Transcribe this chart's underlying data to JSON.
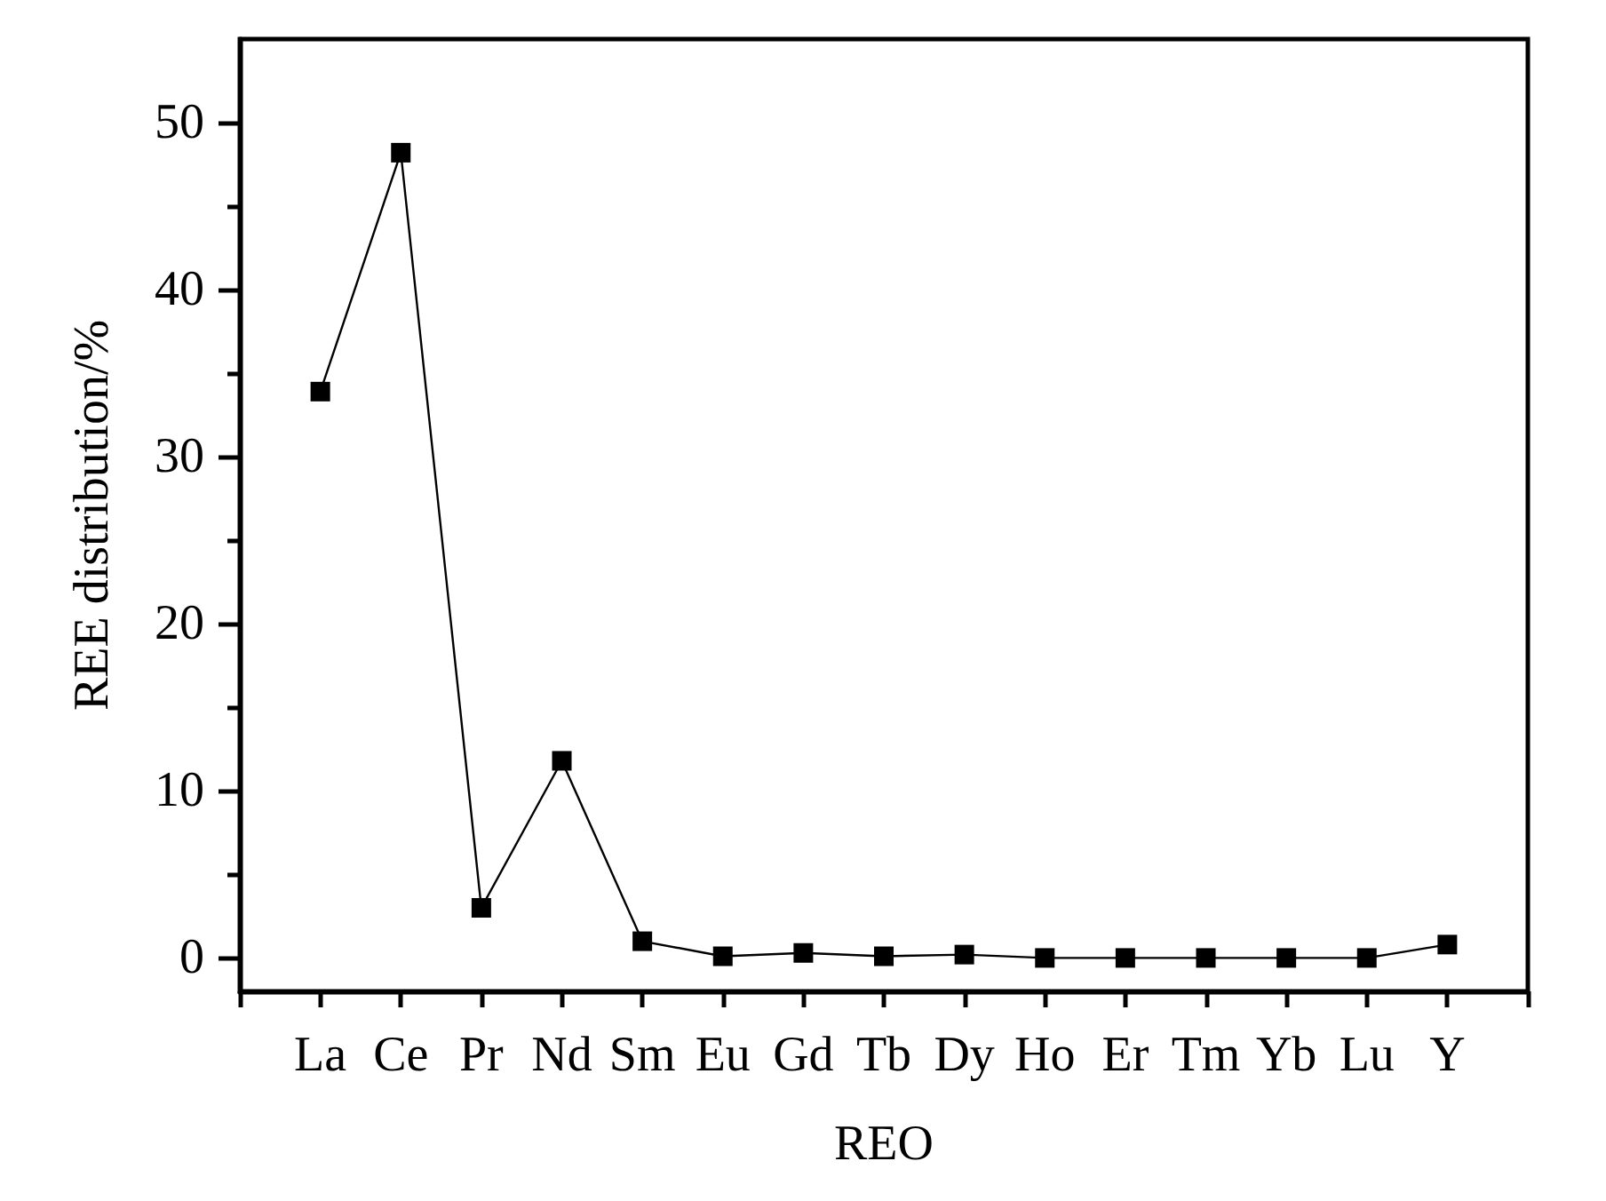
{
  "chart_data": {
    "type": "line",
    "xlabel": "REO",
    "ylabel": "REE distribution/%",
    "categories": [
      "La",
      "Ce",
      "Pr",
      "Nd",
      "Sm",
      "Eu",
      "Gd",
      "Tb",
      "Dy",
      "Ho",
      "Er",
      "Tm",
      "Yb",
      "Lu",
      "Y"
    ],
    "values": [
      33.9,
      48.2,
      3.0,
      11.8,
      1.0,
      0.1,
      0.3,
      0.1,
      0.2,
      0,
      0,
      0,
      0,
      0,
      0.8
    ],
    "color": "#000000",
    "marker": "square",
    "line_style": "solid",
    "ylim": [
      -2,
      55
    ],
    "yticks": [
      0,
      {
        "value": 5,
        "label": null
      },
      10,
      {
        "value": 15,
        "label": null
      },
      20,
      {
        "value": 25,
        "label": null
      },
      30,
      {
        "value": 35,
        "label": null
      },
      40,
      {
        "value": 45,
        "label": null
      },
      50
    ]
  }
}
